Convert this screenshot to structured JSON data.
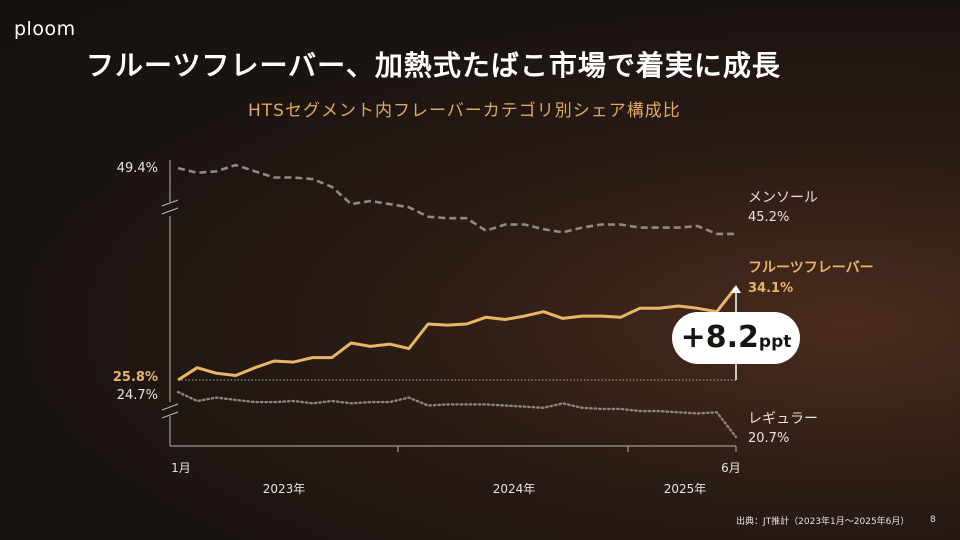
{
  "brand": {
    "logo_text": "ploom"
  },
  "slide": {
    "title": "フルーツフレーバー、加熱式たばこ市場で着実に成長",
    "subtitle": "HTSセグメント内フレーバーカテゴリ別シェア構成比",
    "source": "出典：JT推計（2023年1月〜2025年6月）",
    "page_number": "8"
  },
  "colors": {
    "menthol": "#8f8a86",
    "fruit": "#e8b665",
    "regular": "#8a8580",
    "axis": "#bdb7b1",
    "accent_text": "#e0a85a"
  },
  "chart_data": {
    "type": "line",
    "title": "HTSセグメント内フレーバーカテゴリ別シェア構成比",
    "x_start_label": "1月",
    "x_end_label": "6月",
    "year_labels": [
      "2023年",
      "2024年",
      "2025年"
    ],
    "months": 30,
    "series": [
      {
        "key": "menthol",
        "name": "メンソール",
        "style": "dashed",
        "start_label": "49.4%",
        "end_label": "45.2%",
        "values": [
          49.4,
          49.1,
          49.2,
          49.6,
          49.2,
          48.8,
          48.8,
          48.7,
          48.2,
          47.1,
          47.3,
          47.1,
          46.9,
          46.3,
          46.2,
          46.2,
          45.4,
          45.8,
          45.8,
          45.5,
          45.3,
          45.6,
          45.8,
          45.8,
          45.6,
          45.6,
          45.6,
          45.7,
          45.2,
          45.2
        ]
      },
      {
        "key": "fruit",
        "name": "フルーツフレーバー",
        "style": "solid",
        "start_label": "25.8%",
        "end_label": "34.1%",
        "values": [
          25.8,
          26.9,
          26.4,
          26.2,
          26.9,
          27.5,
          27.4,
          27.8,
          27.8,
          29.1,
          28.8,
          29.0,
          28.6,
          30.8,
          30.7,
          30.8,
          31.4,
          31.2,
          31.5,
          31.9,
          31.3,
          31.5,
          31.5,
          31.4,
          32.2,
          32.2,
          32.4,
          32.2,
          31.9,
          34.1
        ]
      },
      {
        "key": "regular",
        "name": "レギュラー",
        "style": "dotted",
        "start_label": "24.7%",
        "end_label": "20.7%",
        "values": [
          24.7,
          23.9,
          24.2,
          24.0,
          23.8,
          23.8,
          23.9,
          23.7,
          23.9,
          23.7,
          23.8,
          23.8,
          24.2,
          23.5,
          23.6,
          23.6,
          23.6,
          23.5,
          23.4,
          23.3,
          23.7,
          23.3,
          23.2,
          23.2,
          23.0,
          23.0,
          22.9,
          22.8,
          22.9,
          20.7
        ]
      }
    ],
    "annotation": {
      "value": "+8.2",
      "unit": "ppt"
    }
  }
}
